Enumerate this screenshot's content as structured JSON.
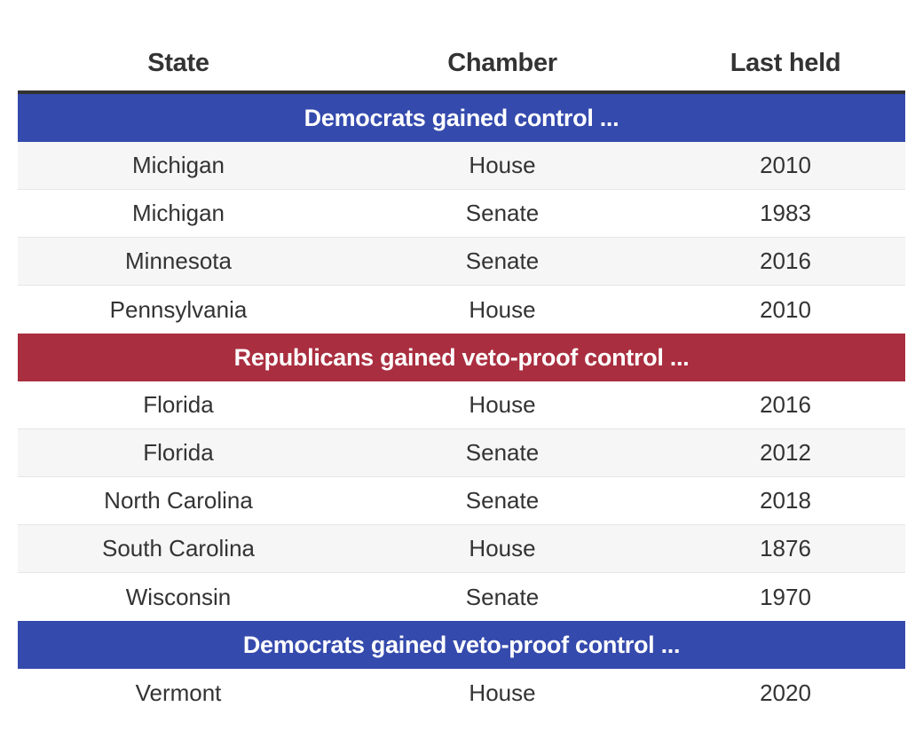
{
  "columns": {
    "state": "State",
    "chamber": "Chamber",
    "last_held": "Last held"
  },
  "colors": {
    "democrat": "#354aad",
    "republican": "#a92e3f",
    "header_rule": "#333333",
    "row_shade": "#f6f6f6"
  },
  "groups": [
    {
      "title": "Democrats gained control ...",
      "party": "democrat",
      "rows": [
        {
          "state": "Michigan",
          "chamber": "House",
          "last_held": "2010"
        },
        {
          "state": "Michigan",
          "chamber": "Senate",
          "last_held": "1983"
        },
        {
          "state": "Minnesota",
          "chamber": "Senate",
          "last_held": "2016"
        },
        {
          "state": "Pennsylvania",
          "chamber": "House",
          "last_held": "2010"
        }
      ]
    },
    {
      "title": "Republicans gained veto-proof control ...",
      "party": "republican",
      "rows": [
        {
          "state": "Florida",
          "chamber": "House",
          "last_held": "2016"
        },
        {
          "state": "Florida",
          "chamber": "Senate",
          "last_held": "2012"
        },
        {
          "state": "North Carolina",
          "chamber": "Senate",
          "last_held": "2018"
        },
        {
          "state": "South Carolina",
          "chamber": "House",
          "last_held": "1876"
        },
        {
          "state": "Wisconsin",
          "chamber": "Senate",
          "last_held": "1970"
        }
      ]
    },
    {
      "title": "Democrats gained veto-proof control ...",
      "party": "democrat",
      "rows": [
        {
          "state": "Vermont",
          "chamber": "House",
          "last_held": "2020"
        }
      ]
    }
  ]
}
